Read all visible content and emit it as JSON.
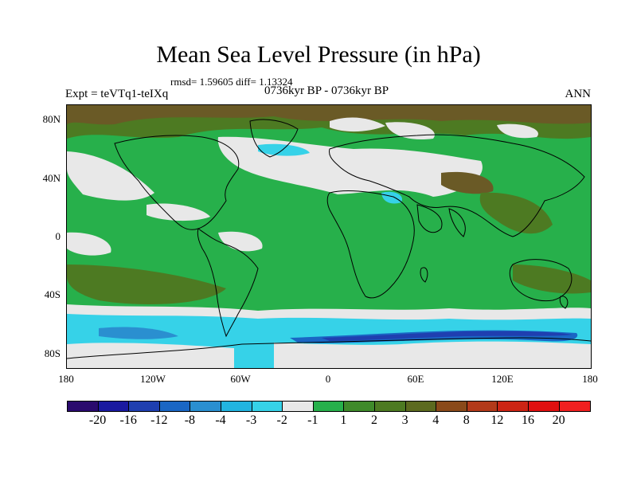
{
  "title": "Mean Sea Level Pressure (in hPa)",
  "stats": "rmsd= 1.59605 diff= 1.13324",
  "subtitle": "0736kyr BP - 0736kyr BP",
  "left_label": "Expt = teVTq1-teIXq",
  "right_label": "ANN",
  "lat_labels": [
    "80N",
    "40N",
    "0",
    "40S",
    "80S"
  ],
  "lon_labels": [
    "180",
    "120W",
    "60W",
    "0",
    "60E",
    "120E",
    "180"
  ],
  "colorbar": {
    "colors": [
      "#2a0a6e",
      "#1a1aa0",
      "#1f3fb0",
      "#1a66c4",
      "#2a8fd0",
      "#22b4e0",
      "#36d2e8",
      "#e8e8e8",
      "#27b04b",
      "#3f8a2a",
      "#4d7a22",
      "#5c6a1f",
      "#8a4a1a",
      "#b33a1a",
      "#cc2414",
      "#e01010",
      "#f02020"
    ],
    "labels": [
      "-20",
      "-16",
      "-12",
      "-8",
      "-4",
      "-3",
      "-2",
      "-1",
      "1",
      "2",
      "3",
      "4",
      "8",
      "12",
      "16",
      "20"
    ]
  },
  "colors": {
    "green": "#27b04b",
    "dark_green": "#4d7a22",
    "brown": "#7a5a2a",
    "white": "#e8e8e8",
    "cyan": "#36d2e8",
    "blue": "#1a66c4",
    "deep_blue": "#1f3fb0"
  }
}
